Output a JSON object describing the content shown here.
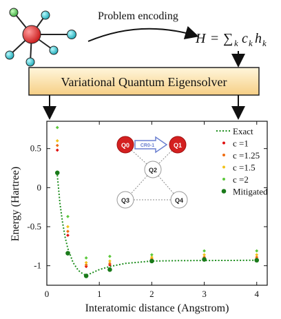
{
  "header": {
    "encoding_label": "Problem encoding",
    "hamiltonian": {
      "H": "H",
      "eq": "=",
      "sum": "∑",
      "sub_k": "k",
      "c": "c",
      "h": "h"
    },
    "vqe_label": "Variational Quantum Eigensolver"
  },
  "chart_data": {
    "type": "scatter",
    "xlabel": "Interatomic distance (Angstrom)",
    "ylabel": "Energy (Hartree)",
    "xlim": [
      0,
      4.2
    ],
    "ylim": [
      -1.25,
      0.85
    ],
    "xticks": [
      0,
      1,
      2,
      3,
      4
    ],
    "yticks": [
      0.5,
      0,
      -0.5,
      -1
    ],
    "ytick_labels": [
      "0.5",
      "0",
      "-0.5",
      "-1"
    ],
    "legend_position": "top-right",
    "exact": {
      "name": "Exact",
      "color": "#1a8c1a",
      "x": [
        0.2,
        0.25,
        0.3,
        0.35,
        0.4,
        0.5,
        0.6,
        0.7,
        0.75,
        0.8,
        0.9,
        1.0,
        1.2,
        1.5,
        2.0,
        2.5,
        3.0,
        3.5,
        4.0
      ],
      "y": [
        0.16,
        -0.2,
        -0.45,
        -0.64,
        -0.78,
        -0.96,
        -1.06,
        -1.11,
        -1.12,
        -1.11,
        -1.08,
        -1.05,
        -1.01,
        -0.97,
        -0.94,
        -0.935,
        -0.933,
        -0.932,
        -0.93
      ]
    },
    "series": [
      {
        "name": "c =1",
        "color": "#e01010",
        "x": [
          0.2,
          0.4,
          0.75,
          1.2,
          2.0,
          3.0,
          4.0
        ],
        "y": [
          0.48,
          -0.61,
          -1.01,
          -0.99,
          -0.93,
          -0.91,
          -0.91
        ]
      },
      {
        "name": "c =1.25",
        "color": "#ef6c10",
        "x": [
          0.2,
          0.4,
          0.75,
          1.2,
          2.0,
          3.0,
          4.0
        ],
        "y": [
          0.54,
          -0.56,
          -0.99,
          -0.97,
          -0.91,
          -0.89,
          -0.89
        ]
      },
      {
        "name": "c =1.5",
        "color": "#f2c21b",
        "x": [
          0.2,
          0.4,
          0.75,
          1.2,
          2.0,
          3.0,
          4.0
        ],
        "y": [
          0.6,
          -0.5,
          -0.96,
          -0.94,
          -0.89,
          -0.86,
          -0.86
        ]
      },
      {
        "name": "c =2",
        "color": "#5cc83c",
        "x": [
          0.2,
          0.4,
          0.75,
          1.2,
          2.0,
          3.0,
          4.0
        ],
        "y": [
          0.77,
          -0.37,
          -0.9,
          -0.88,
          -0.86,
          -0.81,
          -0.81
        ]
      },
      {
        "name": "Mitigated",
        "color": "#1a7a1a",
        "x": [
          0.2,
          0.4,
          0.75,
          1.2,
          2.0,
          3.0,
          4.0
        ],
        "y": [
          0.19,
          -0.84,
          -1.13,
          -1.05,
          -0.94,
          -0.92,
          -0.93
        ]
      }
    ]
  },
  "inset": {
    "nodes": [
      {
        "label": "Q0",
        "color": "#d42020",
        "text_color": "#ffffff"
      },
      {
        "label": "Q1",
        "color": "#d42020",
        "text_color": "#ffffff"
      },
      {
        "label": "Q2",
        "color": "#ffffff",
        "text_color": "#222222"
      },
      {
        "label": "Q3",
        "color": "#ffffff",
        "text_color": "#222222"
      },
      {
        "label": "Q4",
        "color": "#ffffff",
        "text_color": "#222222"
      }
    ],
    "gate_label": "CR0-1",
    "gate_color": "#6a7fd0"
  }
}
